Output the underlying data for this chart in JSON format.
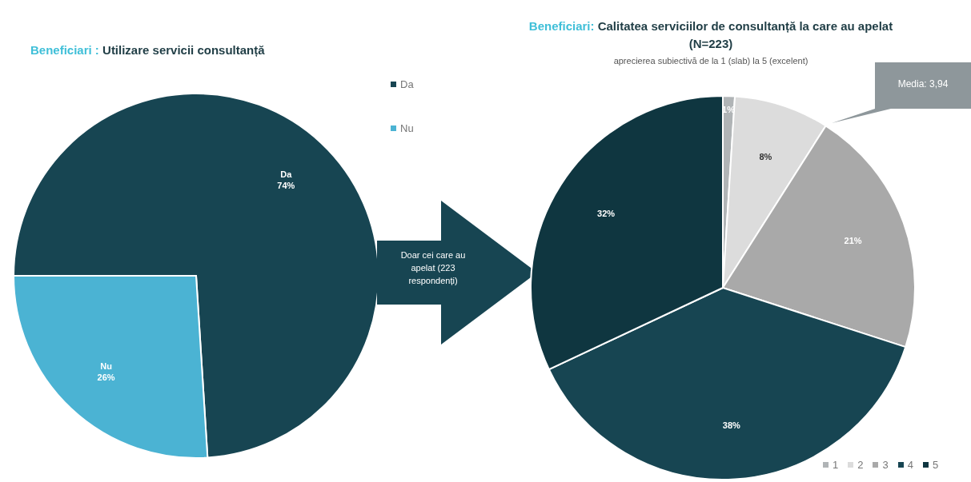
{
  "chart_data": [
    {
      "type": "pie",
      "title": "Beneficiari : Utilizare servicii consultanță",
      "categories": [
        "Da",
        "Nu"
      ],
      "values": [
        74,
        26
      ],
      "colors": [
        "#174552",
        "#4bb3d3"
      ],
      "value_labels": [
        "Da\n74%",
        "Nu\n26%"
      ],
      "legend": "top right",
      "annotations": [
        "Doar cei care au apelat (223 respondenți)"
      ]
    },
    {
      "type": "pie",
      "title": "Beneficiari: Calitatea serviciilor de consultanță la care au apelat (N=223)",
      "subtitle": "aprecierea subiectivă de la 1 (slab) la 5 (excelent)",
      "categories": [
        "1",
        "2",
        "3",
        "4",
        "5"
      ],
      "values": [
        1,
        8,
        21,
        38,
        32
      ],
      "colors": [
        "#b0b4b6",
        "#dcdcdc",
        "#a9a9a9",
        "#174552",
        "#0f3640"
      ],
      "value_labels": [
        "1%",
        "8%",
        "21%",
        "38%",
        "32%"
      ],
      "legend": "bottom right",
      "annotations": [
        "Media: 3,94"
      ]
    }
  ]
}
